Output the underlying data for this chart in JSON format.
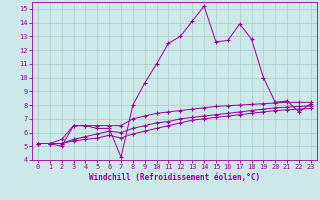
{
  "xlabel": "Windchill (Refroidissement éolien,°C)",
  "bg_color": "#cce8e8",
  "line_color": "#990099",
  "grid_color": "#aacccc",
  "xlim": [
    -0.5,
    23.5
  ],
  "ylim": [
    4,
    15.5
  ],
  "xticks": [
    0,
    1,
    2,
    3,
    4,
    5,
    6,
    7,
    8,
    9,
    10,
    11,
    12,
    13,
    14,
    15,
    16,
    17,
    18,
    19,
    20,
    21,
    22,
    23
  ],
  "yticks": [
    4,
    5,
    6,
    7,
    8,
    9,
    10,
    11,
    12,
    13,
    14,
    15
  ],
  "series1_x": [
    0,
    1,
    2,
    3,
    4,
    5,
    6,
    7,
    8,
    9,
    10,
    11,
    12,
    13,
    14,
    15,
    16,
    17,
    18,
    19,
    20,
    21,
    22,
    23
  ],
  "series1_y": [
    5.2,
    5.2,
    5.0,
    6.5,
    6.5,
    6.3,
    6.3,
    4.2,
    8.0,
    9.6,
    11.0,
    12.5,
    13.0,
    14.1,
    15.2,
    12.6,
    12.7,
    13.9,
    12.8,
    10.0,
    8.2,
    8.3,
    7.5,
    8.1
  ],
  "series2_x": [
    0,
    1,
    2,
    3,
    4,
    5,
    6,
    7,
    8,
    9,
    10,
    11,
    12,
    13,
    14,
    15,
    16,
    17,
    18,
    19,
    20,
    21,
    22,
    23
  ],
  "series2_y": [
    5.2,
    5.2,
    5.5,
    6.5,
    6.5,
    6.5,
    6.5,
    6.5,
    7.0,
    7.2,
    7.4,
    7.5,
    7.6,
    7.7,
    7.8,
    7.9,
    7.95,
    8.0,
    8.05,
    8.1,
    8.15,
    8.2,
    8.2,
    8.2
  ],
  "series3_x": [
    0,
    1,
    2,
    3,
    4,
    5,
    6,
    7,
    8,
    9,
    10,
    11,
    12,
    13,
    14,
    15,
    16,
    17,
    18,
    19,
    20,
    21,
    22,
    23
  ],
  "series3_y": [
    5.2,
    5.2,
    5.2,
    5.5,
    5.7,
    5.9,
    6.1,
    6.0,
    6.3,
    6.5,
    6.7,
    6.8,
    7.0,
    7.1,
    7.2,
    7.3,
    7.4,
    7.5,
    7.6,
    7.7,
    7.8,
    7.85,
    7.9,
    7.95
  ],
  "series4_x": [
    0,
    1,
    2,
    3,
    4,
    5,
    6,
    7,
    8,
    9,
    10,
    11,
    12,
    13,
    14,
    15,
    16,
    17,
    18,
    19,
    20,
    21,
    22,
    23
  ],
  "series4_y": [
    5.2,
    5.2,
    5.2,
    5.4,
    5.5,
    5.6,
    5.8,
    5.6,
    5.9,
    6.1,
    6.3,
    6.5,
    6.7,
    6.9,
    7.0,
    7.1,
    7.2,
    7.3,
    7.4,
    7.5,
    7.6,
    7.65,
    7.7,
    7.75
  ],
  "xlabel_fontsize": 5.5,
  "tick_fontsize": 5,
  "marker_size": 3,
  "line_width": 0.7
}
